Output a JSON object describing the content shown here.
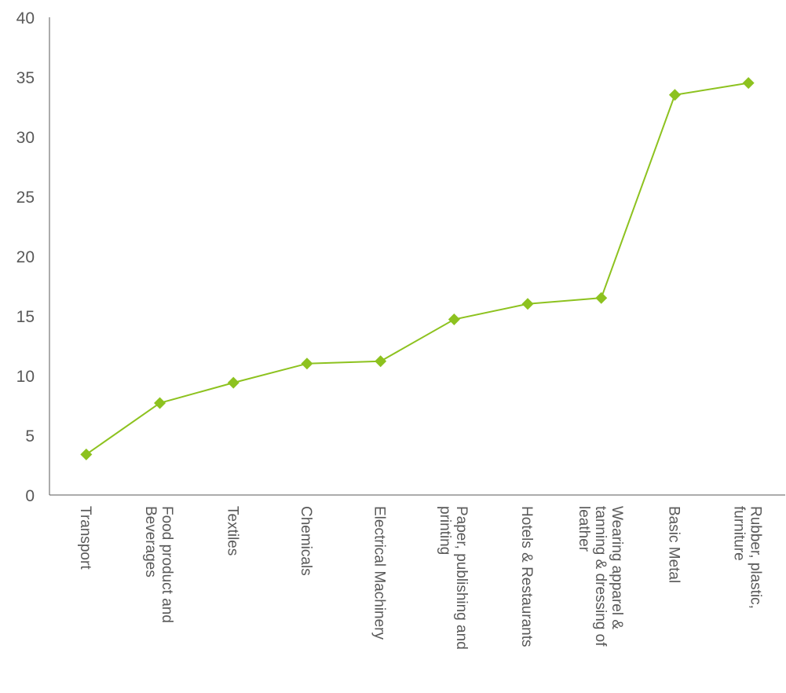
{
  "chart_data": {
    "type": "line",
    "categories": [
      [
        "Transport"
      ],
      [
        "Food product and",
        "Beverages"
      ],
      [
        "Textiles"
      ],
      [
        "Chemicals"
      ],
      [
        "Electrical Machinery"
      ],
      [
        "Paper, publishing and",
        "printing"
      ],
      [
        "Hotels & Restaurants"
      ],
      [
        "Wearing apparel &",
        "tanning & dressing of",
        "leather"
      ],
      [
        "Basic Metal"
      ],
      [
        "Rubber, plastic,",
        "furniture"
      ]
    ],
    "values": [
      3.4,
      7.7,
      9.4,
      11.0,
      11.2,
      14.7,
      16.0,
      16.5,
      33.5,
      34.5
    ],
    "ylim": [
      0,
      40
    ],
    "yticks": [
      "0",
      "5",
      "10",
      "15",
      "20",
      "25",
      "30",
      "35",
      "40"
    ],
    "ytick_values": [
      0,
      5,
      10,
      15,
      20,
      25,
      30,
      35,
      40
    ],
    "grid": false,
    "legend": "none",
    "title": "",
    "xlabel": "",
    "ylabel": "",
    "colors": {
      "series": "#8dc21f",
      "axis": "#595959",
      "text": "#595959"
    }
  }
}
